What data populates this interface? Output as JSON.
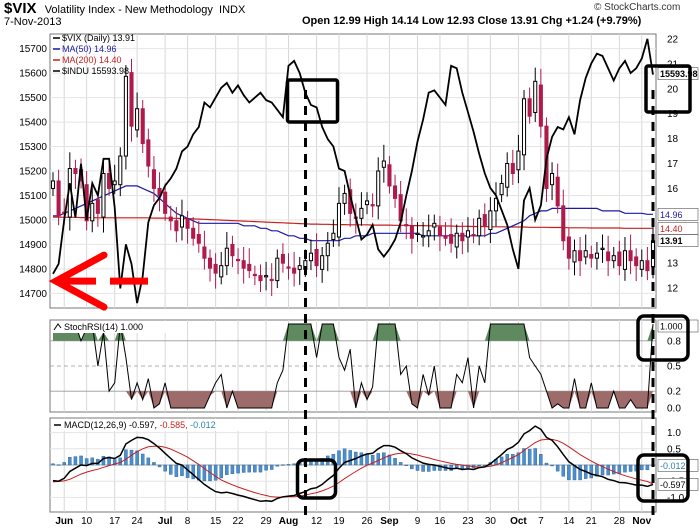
{
  "header": {
    "symbol": "$VIX",
    "name": "Volatility Index - New Methodology",
    "exchange": "INDX",
    "date": "7-Nov-2013",
    "quote": "Open 12.99  High 14.14  Low 12.93  Close 13.91  Chg +1.24 (+9.79%)",
    "credit": "© StockCharts.com"
  },
  "colors": {
    "vix_up": "#000000",
    "vix_down": "#b01a4a",
    "ma50": "#1a1aa8",
    "ma200": "#c81e1e",
    "indu": "#000000",
    "stoch_up": "#5f8a5f",
    "stoch_down": "#9e6b6b",
    "macd_hist": "#4a8fd0",
    "annotation": "#ff0000"
  },
  "chart_data": [
    {
      "type": "line",
      "panel": "price",
      "legend": [
        {
          "label": "$VIX (Daily) 13.91",
          "color": "#000000"
        },
        {
          "label": "MA(50) 14.96",
          "color": "#1a1aa8"
        },
        {
          "label": "MA(200) 14.40",
          "color": "#c81e1e"
        },
        {
          "label": "$INDU 15593.98",
          "color": "#000000"
        }
      ],
      "x_ticks": [
        "Jun",
        "10",
        "17",
        "24",
        "Jul",
        "8",
        "15",
        "22",
        "29",
        "Aug",
        "12",
        "19",
        "26",
        "Sep",
        "9",
        "16",
        "23",
        "30",
        "Oct",
        "7",
        "14",
        "21",
        "28",
        "Nov"
      ],
      "left_axis": {
        "label": "$INDU",
        "range": [
          14640,
          15760
        ],
        "ticks": [
          14700,
          14800,
          14900,
          15000,
          15100,
          15200,
          15300,
          15400,
          15500,
          15600,
          15700
        ]
      },
      "right_axis": {
        "label": "$VIX",
        "range": [
          11.2,
          22.2
        ],
        "ticks": [
          12,
          13,
          14,
          15,
          16,
          17,
          18,
          19,
          20,
          21,
          22
        ]
      },
      "vix_close": [
        16.3,
        14.9,
        15.0,
        16.8,
        16.6,
        16.3,
        14.7,
        15.4,
        15.0,
        16.6,
        16.0,
        16.3,
        17.3,
        20.5,
        18.5,
        19.2,
        17.8,
        16.9,
        16.0,
        15.7,
        15.0,
        14.7,
        14.3,
        14.9,
        14.4,
        14.0,
        13.8,
        13.2,
        12.8,
        12.6,
        12.9,
        13.6,
        13.3,
        13.1,
        12.8,
        12.7,
        12.5,
        12.3,
        12.5,
        12.3,
        13.2,
        13.0,
        12.8,
        12.6,
        12.9,
        13.1,
        13.4,
        12.9,
        13.3,
        13.8,
        14.2,
        15.4,
        15.8,
        15.0,
        14.8,
        15.2,
        15.5,
        15.3,
        16.7,
        17.1,
        16.1,
        15.6,
        14.7,
        14.5,
        14.0,
        14.2,
        14.1,
        14.3,
        14.6,
        14.1,
        14.0,
        13.8,
        14.2,
        13.9,
        14.3,
        14.1,
        14.8,
        14.5,
        15.1,
        15.6,
        16.2,
        17.0,
        16.6,
        17.5,
        19.6,
        18.9,
        20.3,
        18.5,
        16.0,
        16.6,
        15.3,
        13.9,
        13.2,
        13.5,
        13.1,
        13.5,
        13.2,
        13.4,
        13.6,
        13.1,
        13.3,
        12.9,
        13.5,
        13.1,
        12.9,
        13.1,
        12.7,
        13.9
      ],
      "indu_close": [
        14780,
        14820,
        15000,
        15150,
        15010,
        15230,
        15000,
        15150,
        15100,
        15250,
        15250,
        15050,
        14720,
        14900,
        14820,
        14660,
        14770,
        14990,
        15060,
        15090,
        15140,
        15170,
        15210,
        15280,
        15300,
        15350,
        15380,
        15480,
        15460,
        15500,
        15540,
        15560,
        15520,
        15550,
        15510,
        15480,
        15500,
        15520,
        15490,
        15480,
        15450,
        15420,
        15630,
        15650,
        15600,
        15520,
        15470,
        15460,
        15380,
        15330,
        15300,
        15210,
        15200,
        15100,
        15010,
        14920,
        14940,
        14980,
        14880,
        14850,
        14880,
        14920,
        14990,
        15100,
        15200,
        15320,
        15410,
        15520,
        15530,
        15500,
        15470,
        15630,
        15620,
        15520,
        15440,
        15360,
        15270,
        15190,
        15130,
        15100,
        15040,
        14980,
        14880,
        14800,
        15080,
        15130,
        15000,
        15060,
        15250,
        15340,
        15380,
        15370,
        15420,
        15350,
        15490,
        15580,
        15640,
        15680,
        15670,
        15620,
        15570,
        15620,
        15650,
        15600,
        15620,
        15660,
        15740,
        15593.98
      ],
      "ma50": [
        14.9,
        14.9,
        15.0,
        15.1,
        15.2,
        15.3,
        15.4,
        15.5,
        15.6,
        15.7,
        15.8,
        15.9,
        16.0,
        16.1,
        16.1,
        16.1,
        16.0,
        15.9,
        15.8,
        15.6,
        15.4,
        15.2,
        15.0,
        14.9,
        14.8,
        14.7,
        14.6,
        14.6,
        14.6,
        14.6,
        14.6,
        14.6,
        14.6,
        14.6,
        14.5,
        14.5,
        14.5,
        14.4,
        14.4,
        14.3,
        14.3,
        14.2,
        14.1,
        14.1,
        14.0,
        14.0,
        13.9,
        13.9,
        13.9,
        13.9,
        13.9,
        13.9,
        14.0,
        14.0,
        14.1,
        14.1,
        14.1,
        14.2,
        14.2,
        14.2,
        14.2,
        14.2,
        14.2,
        14.2,
        14.2,
        14.2,
        14.1,
        14.1,
        14.1,
        14.1,
        14.1,
        14.1,
        14.1,
        14.1,
        14.1,
        14.1,
        14.1,
        14.1,
        14.2,
        14.2,
        14.3,
        14.4,
        14.5,
        14.6,
        14.7,
        14.9,
        15.0,
        15.1,
        15.1,
        15.2,
        15.2,
        15.2,
        15.2,
        15.2,
        15.2,
        15.2,
        15.2,
        15.2,
        15.1,
        15.1,
        15.1,
        15.1,
        15.0,
        15.0,
        15.0,
        15.0,
        14.96,
        14.96
      ],
      "ma200": [
        14.85,
        14.85,
        14.84,
        14.84,
        14.84,
        14.83,
        14.83,
        14.83,
        14.82,
        14.82,
        14.82,
        14.82,
        14.82,
        14.82,
        14.82,
        14.82,
        14.82,
        14.82,
        14.81,
        14.81,
        14.81,
        14.8,
        14.8,
        14.79,
        14.79,
        14.78,
        14.77,
        14.76,
        14.75,
        14.74,
        14.73,
        14.72,
        14.71,
        14.7,
        14.69,
        14.68,
        14.67,
        14.66,
        14.65,
        14.64,
        14.63,
        14.62,
        14.61,
        14.6,
        14.59,
        14.58,
        14.57,
        14.57,
        14.56,
        14.56,
        14.55,
        14.55,
        14.55,
        14.54,
        14.54,
        14.54,
        14.54,
        14.53,
        14.53,
        14.53,
        14.53,
        14.52,
        14.52,
        14.52,
        14.51,
        14.51,
        14.51,
        14.5,
        14.5,
        14.5,
        14.49,
        14.49,
        14.48,
        14.48,
        14.48,
        14.47,
        14.47,
        14.47,
        14.46,
        14.46,
        14.46,
        14.45,
        14.45,
        14.45,
        14.45,
        14.44,
        14.44,
        14.44,
        14.44,
        14.43,
        14.43,
        14.43,
        14.42,
        14.42,
        14.42,
        14.42,
        14.41,
        14.41,
        14.41,
        14.41,
        14.41,
        14.41,
        14.4,
        14.4,
        14.4,
        14.4,
        14.4,
        14.4
      ],
      "last_labels": {
        "indu": "15593.98",
        "ma50": "14.96",
        "ma200": "14.40",
        "vix": "13.91"
      }
    },
    {
      "type": "area",
      "panel": "stochrsi",
      "legend": "StochRSI(14) 1.000",
      "range": [
        0,
        1
      ],
      "ticks": [
        0.0,
        0.2,
        0.5,
        0.8,
        1.0
      ],
      "last_label": "1.000",
      "values": [
        1.0,
        1.0,
        1.0,
        1.0,
        1.0,
        0.8,
        0.95,
        1.0,
        0.5,
        0.9,
        0.2,
        0.3,
        1.0,
        0.6,
        0.1,
        0.3,
        0.1,
        0.35,
        0.0,
        0.05,
        0.3,
        0.0,
        0.0,
        0.0,
        0.0,
        0.0,
        0.0,
        0.0,
        0.15,
        0.3,
        0.4,
        0.0,
        0.2,
        0.0,
        0.0,
        0.0,
        0.0,
        0.0,
        0.0,
        0.0,
        0.3,
        0.45,
        1.0,
        1.0,
        1.0,
        1.0,
        1.0,
        0.6,
        1.0,
        1.0,
        1.0,
        0.6,
        0.45,
        0.7,
        0.0,
        0.3,
        0.1,
        0.25,
        1.0,
        1.0,
        1.0,
        1.0,
        0.4,
        0.5,
        0.05,
        0.0,
        0.4,
        0.15,
        0.5,
        0.0,
        0.0,
        0.0,
        0.4,
        0.3,
        0.6,
        0.0,
        0.5,
        0.3,
        1.0,
        1.0,
        1.0,
        1.0,
        1.0,
        1.0,
        1.0,
        0.6,
        0.5,
        0.4,
        0.2,
        0.0,
        0.05,
        0.0,
        0.0,
        0.35,
        0.0,
        0.0,
        0.3,
        0.0,
        0.0,
        0.0,
        0.2,
        0.0,
        0.0,
        0.1,
        0.0,
        0.0,
        0.0,
        1.0
      ]
    },
    {
      "type": "line",
      "panel": "macd",
      "legend": {
        "name": "MACD(12,26,9)",
        "macd": "-0.597",
        "signal": "-0.585",
        "hist": "-0.012"
      },
      "range": [
        -1.45,
        1.45
      ],
      "ticks": [
        -1.0,
        -0.5,
        0.0,
        0.5,
        1.0
      ],
      "last_labels": {
        "hist": "-0.012",
        "macd": "-0.597"
      },
      "macd": [
        -0.48,
        -0.5,
        -0.41,
        -0.2,
        -0.1,
        0.0,
        -0.02,
        0.05,
        0.05,
        0.2,
        0.23,
        0.2,
        0.3,
        0.65,
        0.76,
        0.85,
        0.84,
        0.78,
        0.66,
        0.52,
        0.36,
        0.2,
        0.05,
        0.0,
        -0.15,
        -0.3,
        -0.45,
        -0.6,
        -0.72,
        -0.82,
        -0.86,
        -0.84,
        -0.88,
        -0.93,
        -0.97,
        -1.02,
        -1.07,
        -1.12,
        -1.1,
        -1.12,
        -1.03,
        -0.98,
        -0.96,
        -0.94,
        -0.88,
        -0.82,
        -0.73,
        -0.7,
        -0.6,
        -0.45,
        -0.32,
        -0.1,
        0.08,
        0.14,
        0.2,
        0.28,
        0.34,
        0.36,
        0.5,
        0.6,
        0.6,
        0.55,
        0.44,
        0.35,
        0.22,
        0.14,
        0.06,
        0.02,
        0.0,
        -0.04,
        -0.08,
        -0.12,
        -0.1,
        -0.14,
        -0.12,
        -0.14,
        -0.08,
        -0.06,
        0.04,
        0.18,
        0.32,
        0.48,
        0.56,
        0.7,
        0.96,
        1.06,
        1.2,
        1.1,
        0.85,
        0.76,
        0.56,
        0.32,
        0.1,
        -0.02,
        -0.14,
        -0.2,
        -0.28,
        -0.32,
        -0.36,
        -0.44,
        -0.48,
        -0.54,
        -0.55,
        -0.58,
        -0.62,
        -0.62,
        -0.66,
        -0.597
      ],
      "signal": [
        -0.52,
        -0.51,
        -0.49,
        -0.44,
        -0.36,
        -0.28,
        -0.22,
        -0.17,
        -0.13,
        -0.07,
        -0.02,
        0.03,
        0.08,
        0.18,
        0.3,
        0.41,
        0.5,
        0.56,
        0.58,
        0.58,
        0.55,
        0.49,
        0.41,
        0.33,
        0.24,
        0.13,
        0.02,
        -0.11,
        -0.23,
        -0.35,
        -0.46,
        -0.54,
        -0.61,
        -0.68,
        -0.74,
        -0.8,
        -0.85,
        -0.9,
        -0.94,
        -0.98,
        -0.99,
        -0.99,
        -0.98,
        -0.98,
        -0.96,
        -0.93,
        -0.89,
        -0.85,
        -0.8,
        -0.73,
        -0.65,
        -0.54,
        -0.42,
        -0.31,
        -0.2,
        -0.1,
        -0.01,
        0.06,
        0.14,
        0.22,
        0.29,
        0.34,
        0.36,
        0.37,
        0.34,
        0.31,
        0.26,
        0.22,
        0.17,
        0.13,
        0.09,
        0.05,
        0.02,
        0.0,
        -0.03,
        -0.05,
        -0.06,
        -0.06,
        -0.04,
        0.0,
        0.07,
        0.15,
        0.23,
        0.32,
        0.45,
        0.57,
        0.69,
        0.77,
        0.79,
        0.79,
        0.75,
        0.67,
        0.56,
        0.44,
        0.32,
        0.22,
        0.12,
        0.03,
        -0.05,
        -0.13,
        -0.2,
        -0.27,
        -0.33,
        -0.38,
        -0.43,
        -0.47,
        -0.51,
        -0.585
      ]
    }
  ],
  "annotations": {
    "arrow": "red arrow pointing left at 14750 on the $INDU scale",
    "boxes": "black squares at the Aug 5 high and at the last bar in each panel",
    "dashed_lines": "black dashed verticals at Aug 5 and Nov 7 linking price, StochRSI and MACD"
  }
}
